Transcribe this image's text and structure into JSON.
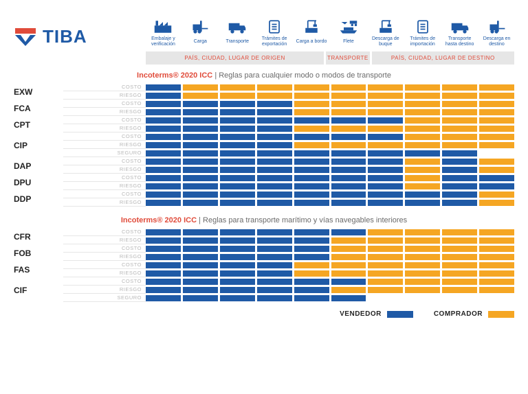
{
  "logo_text": "TIBA",
  "columns": [
    {
      "label": "Embalaje y verificación",
      "icon": "factory"
    },
    {
      "label": "Carga",
      "icon": "forklift"
    },
    {
      "label": "Transporte",
      "icon": "truck"
    },
    {
      "label": "Trámites de exportación",
      "icon": "doc"
    },
    {
      "label": "Carga a bordo",
      "icon": "crane"
    },
    {
      "label": "Flete",
      "icon": "multimodal"
    },
    {
      "label": "Descarga de buque",
      "icon": "crane"
    },
    {
      "label": "Trámites de importación",
      "icon": "doc"
    },
    {
      "label": "Transporte hasta destino",
      "icon": "truck"
    },
    {
      "label": "Descarga en destino",
      "icon": "forklift"
    }
  ],
  "banners": {
    "origin": "PAÍS, CIUDAD, LUGAR DE ORIGEN",
    "transport": "TRANSPORTE",
    "destination": "PAÍS, CIUDAD, LUGAR DE DESTINO"
  },
  "section1": {
    "lead": "Incoterms® 2020 ICC",
    "rest": " | Reglas para cualquier modo o modos de transporte"
  },
  "section2": {
    "lead": "Incoterms® 2020 ICC",
    "rest": " | Reglas para transporte marítimo y vías navegables interiores"
  },
  "line_labels": {
    "cost": "COSTO",
    "risk": "RIESGO",
    "ins": "SEGURO"
  },
  "terms1": [
    {
      "code": "EXW",
      "lines": [
        {
          "k": "cost",
          "v": [
            "S",
            "B",
            "B",
            "B",
            "B",
            "B",
            "B",
            "B",
            "B",
            "B"
          ]
        },
        {
          "k": "risk",
          "v": [
            "S",
            "B",
            "B",
            "B",
            "B",
            "B",
            "B",
            "B",
            "B",
            "B"
          ]
        }
      ]
    },
    {
      "code": "FCA",
      "lines": [
        {
          "k": "cost",
          "v": [
            "S",
            "S",
            "S",
            "S",
            "B",
            "B",
            "B",
            "B",
            "B",
            "B"
          ]
        },
        {
          "k": "risk",
          "v": [
            "S",
            "S",
            "S",
            "S",
            "B",
            "B",
            "B",
            "B",
            "B",
            "B"
          ]
        }
      ]
    },
    {
      "code": "CPT",
      "lines": [
        {
          "k": "cost",
          "v": [
            "S",
            "S",
            "S",
            "S",
            "S",
            "S",
            "S",
            "B",
            "B",
            "B"
          ]
        },
        {
          "k": "risk",
          "v": [
            "S",
            "S",
            "S",
            "S",
            "B",
            "B",
            "B",
            "B",
            "B",
            "B"
          ]
        }
      ]
    },
    {
      "code": "CIP",
      "lines": [
        {
          "k": "cost",
          "v": [
            "S",
            "S",
            "S",
            "S",
            "S",
            "S",
            "S",
            "B",
            "B",
            "B"
          ]
        },
        {
          "k": "risk",
          "v": [
            "S",
            "S",
            "S",
            "S",
            "B",
            "B",
            "B",
            "B",
            "B",
            "B"
          ]
        },
        {
          "k": "ins",
          "v": [
            "S",
            "S",
            "S",
            "S",
            "S",
            "S",
            "S",
            "S",
            "S",
            "E"
          ]
        }
      ]
    },
    {
      "code": "DAP",
      "lines": [
        {
          "k": "cost",
          "v": [
            "S",
            "S",
            "S",
            "S",
            "S",
            "S",
            "S",
            "B",
            "S",
            "B"
          ]
        },
        {
          "k": "risk",
          "v": [
            "S",
            "S",
            "S",
            "S",
            "S",
            "S",
            "S",
            "B",
            "S",
            "B"
          ]
        }
      ]
    },
    {
      "code": "DPU",
      "lines": [
        {
          "k": "cost",
          "v": [
            "S",
            "S",
            "S",
            "S",
            "S",
            "S",
            "S",
            "B",
            "S",
            "S"
          ]
        },
        {
          "k": "risk",
          "v": [
            "S",
            "S",
            "S",
            "S",
            "S",
            "S",
            "S",
            "B",
            "S",
            "S"
          ]
        }
      ]
    },
    {
      "code": "DDP",
      "lines": [
        {
          "k": "cost",
          "v": [
            "S",
            "S",
            "S",
            "S",
            "S",
            "S",
            "S",
            "S",
            "S",
            "B"
          ]
        },
        {
          "k": "risk",
          "v": [
            "S",
            "S",
            "S",
            "S",
            "S",
            "S",
            "S",
            "S",
            "S",
            "B"
          ]
        }
      ]
    }
  ],
  "terms2": [
    {
      "code": "CFR",
      "lines": [
        {
          "k": "cost",
          "v": [
            "S",
            "S",
            "S",
            "S",
            "S",
            "S",
            "B",
            "B",
            "B",
            "B"
          ]
        },
        {
          "k": "risk",
          "v": [
            "S",
            "S",
            "S",
            "S",
            "S",
            "B",
            "B",
            "B",
            "B",
            "B"
          ]
        }
      ]
    },
    {
      "code": "FOB",
      "lines": [
        {
          "k": "cost",
          "v": [
            "S",
            "S",
            "S",
            "S",
            "S",
            "B",
            "B",
            "B",
            "B",
            "B"
          ]
        },
        {
          "k": "risk",
          "v": [
            "S",
            "S",
            "S",
            "S",
            "S",
            "B",
            "B",
            "B",
            "B",
            "B"
          ]
        }
      ]
    },
    {
      "code": "FAS",
      "lines": [
        {
          "k": "cost",
          "v": [
            "S",
            "S",
            "S",
            "S",
            "B",
            "B",
            "B",
            "B",
            "B",
            "B"
          ]
        },
        {
          "k": "risk",
          "v": [
            "S",
            "S",
            "S",
            "S",
            "B",
            "B",
            "B",
            "B",
            "B",
            "B"
          ]
        }
      ]
    },
    {
      "code": "CIF",
      "lines": [
        {
          "k": "cost",
          "v": [
            "S",
            "S",
            "S",
            "S",
            "S",
            "S",
            "B",
            "B",
            "B",
            "B"
          ]
        },
        {
          "k": "risk",
          "v": [
            "S",
            "S",
            "S",
            "S",
            "S",
            "B",
            "B",
            "B",
            "B",
            "B"
          ]
        },
        {
          "k": "ins",
          "v": [
            "S",
            "S",
            "S",
            "S",
            "S",
            "S",
            "E",
            "E",
            "E",
            "E"
          ]
        }
      ]
    }
  ],
  "legend": {
    "seller": "VENDEDOR",
    "buyer": "COMPRADOR"
  },
  "colors": {
    "seller": "#1f5aa6",
    "buyer": "#f5a623",
    "accent": "#e04b3a"
  }
}
